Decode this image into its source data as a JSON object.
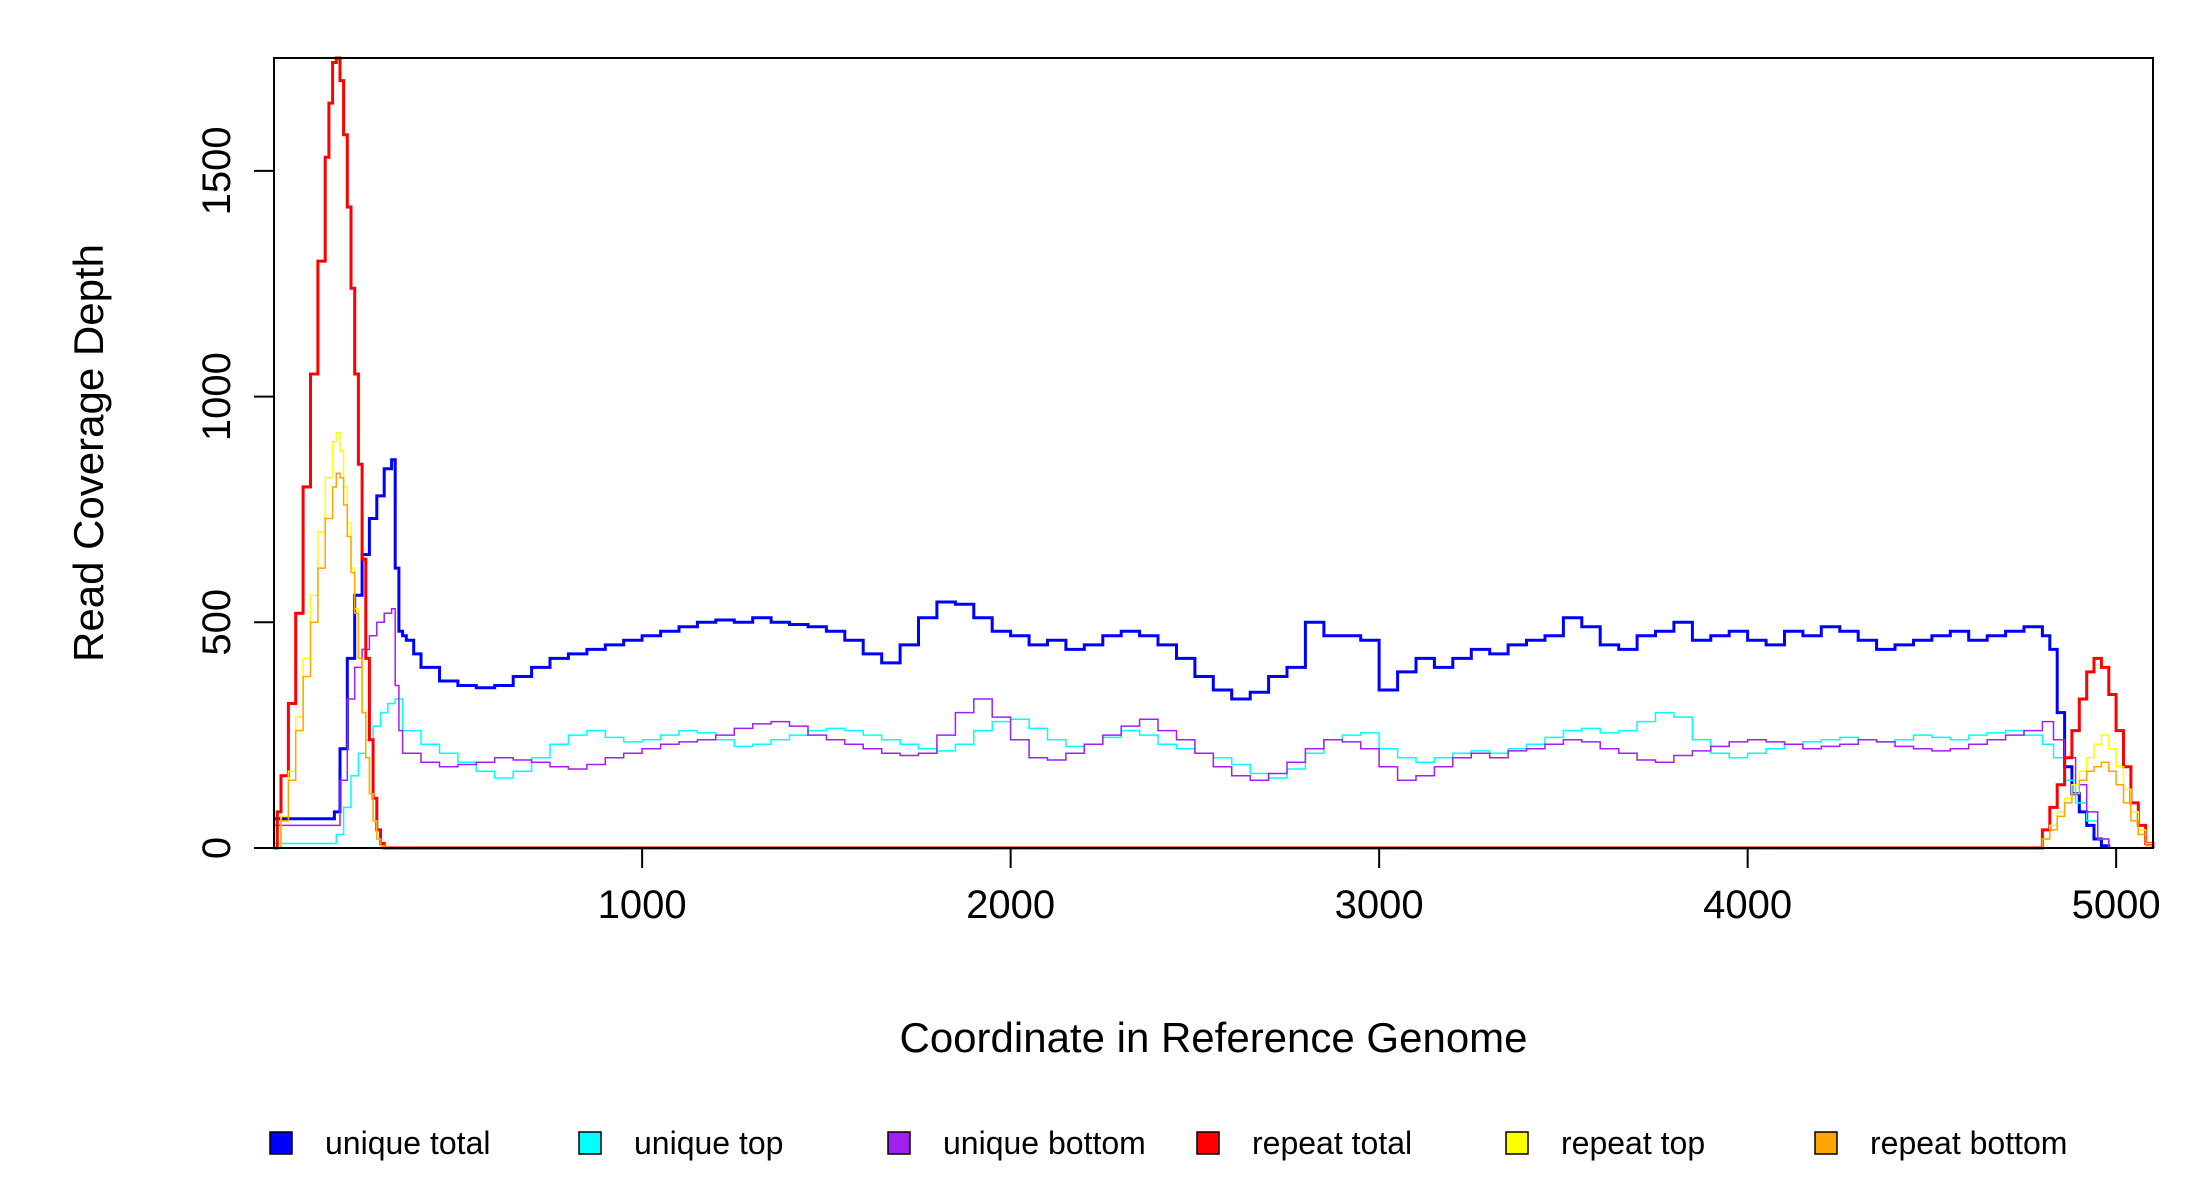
{
  "chart_data": {
    "type": "line",
    "title": "",
    "xlabel": "Coordinate in Reference Genome",
    "ylabel": "Read Coverage Depth",
    "xlim": [
      1,
      5100
    ],
    "ylim": [
      0,
      1750
    ],
    "xticks": [
      1000,
      2000,
      3000,
      4000,
      5000
    ],
    "xtick_labels": [
      "1000",
      "2000",
      "3000",
      "4000",
      "5000"
    ],
    "yticks": [
      0,
      500,
      1000,
      1500
    ],
    "ytick_labels": [
      "0",
      "500",
      "1000",
      "1500"
    ],
    "grid": false,
    "legend_position": "bottom",
    "series": [
      {
        "name": "unique total",
        "color": "#0000FF",
        "stroke": 3,
        "x": [
          1,
          160,
          165,
          180,
          200,
          220,
          240,
          260,
          280,
          300,
          320,
          330,
          340,
          350,
          360,
          380,
          400,
          450,
          500,
          550,
          600,
          650,
          700,
          750,
          800,
          850,
          900,
          950,
          1000,
          1050,
          1100,
          1150,
          1200,
          1250,
          1300,
          1350,
          1400,
          1450,
          1500,
          1550,
          1600,
          1650,
          1700,
          1750,
          1800,
          1850,
          1900,
          1950,
          2000,
          2050,
          2100,
          2150,
          2200,
          2250,
          2300,
          2350,
          2400,
          2450,
          2500,
          2550,
          2600,
          2650,
          2700,
          2750,
          2800,
          2850,
          2900,
          2950,
          3000,
          3050,
          3100,
          3150,
          3200,
          3250,
          3300,
          3350,
          3400,
          3450,
          3500,
          3550,
          3600,
          3650,
          3700,
          3750,
          3800,
          3850,
          3900,
          3950,
          4000,
          4050,
          4100,
          4150,
          4200,
          4250,
          4300,
          4350,
          4400,
          4450,
          4500,
          4550,
          4600,
          4650,
          4700,
          4750,
          4800,
          4820,
          4840,
          4860,
          4880,
          4900,
          4920,
          4940,
          4960,
          4980
        ],
        "y": [
          65,
          65,
          80,
          220,
          420,
          560,
          650,
          730,
          780,
          840,
          860,
          620,
          480,
          470,
          460,
          430,
          400,
          370,
          360,
          355,
          360,
          380,
          400,
          420,
          430,
          440,
          450,
          460,
          470,
          480,
          490,
          500,
          505,
          500,
          510,
          500,
          495,
          490,
          480,
          460,
          430,
          410,
          450,
          510,
          545,
          540,
          510,
          480,
          470,
          450,
          460,
          440,
          450,
          470,
          480,
          470,
          450,
          420,
          380,
          350,
          330,
          345,
          380,
          400,
          500,
          470,
          470,
          460,
          350,
          390,
          420,
          400,
          420,
          440,
          430,
          450,
          460,
          470,
          510,
          490,
          450,
          440,
          470,
          480,
          500,
          460,
          470,
          480,
          460,
          450,
          480,
          470,
          490,
          480,
          460,
          440,
          450,
          460,
          470,
          480,
          460,
          470,
          480,
          490,
          470,
          440,
          300,
          180,
          120,
          80,
          50,
          20,
          5,
          0
        ]
      },
      {
        "name": "unique top",
        "color": "#00FFFF",
        "stroke": 1.5,
        "x": [
          1,
          160,
          170,
          190,
          210,
          230,
          250,
          270,
          290,
          310,
          330,
          350,
          400,
          450,
          500,
          550,
          600,
          650,
          700,
          750,
          800,
          850,
          900,
          950,
          1000,
          1050,
          1100,
          1150,
          1200,
          1250,
          1300,
          1350,
          1400,
          1450,
          1500,
          1550,
          1600,
          1650,
          1700,
          1750,
          1800,
          1850,
          1900,
          1950,
          2000,
          2050,
          2100,
          2150,
          2200,
          2250,
          2300,
          2350,
          2400,
          2450,
          2500,
          2550,
          2600,
          2650,
          2700,
          2750,
          2800,
          2850,
          2900,
          2950,
          3000,
          3050,
          3100,
          3150,
          3200,
          3250,
          3300,
          3350,
          3400,
          3450,
          3500,
          3550,
          3600,
          3650,
          3700,
          3750,
          3800,
          3850,
          3900,
          3950,
          4000,
          4050,
          4100,
          4150,
          4200,
          4250,
          4300,
          4350,
          4400,
          4450,
          4500,
          4550,
          4600,
          4650,
          4700,
          4750,
          4800,
          4830,
          4860,
          4890,
          4920,
          4950,
          4980
        ],
        "y": [
          10,
          10,
          30,
          90,
          160,
          210,
          240,
          270,
          300,
          320,
          330,
          260,
          230,
          210,
          190,
          170,
          155,
          170,
          200,
          230,
          250,
          260,
          245,
          235,
          240,
          250,
          260,
          255,
          240,
          225,
          230,
          240,
          250,
          260,
          265,
          260,
          250,
          240,
          230,
          220,
          215,
          230,
          260,
          280,
          285,
          265,
          240,
          225,
          230,
          245,
          260,
          250,
          230,
          220,
          210,
          200,
          185,
          165,
          155,
          175,
          210,
          240,
          250,
          255,
          220,
          200,
          190,
          200,
          210,
          215,
          210,
          220,
          230,
          245,
          260,
          265,
          255,
          260,
          280,
          300,
          290,
          240,
          210,
          200,
          210,
          220,
          230,
          235,
          240,
          245,
          240,
          235,
          240,
          250,
          245,
          240,
          250,
          255,
          260,
          250,
          230,
          200,
          150,
          100,
          60,
          20,
          0
        ]
      },
      {
        "name": "unique bottom",
        "color": "#A020F0",
        "stroke": 1.5,
        "x": [
          1,
          160,
          180,
          200,
          220,
          240,
          260,
          280,
          300,
          320,
          330,
          340,
          350,
          400,
          450,
          500,
          550,
          600,
          650,
          700,
          750,
          800,
          850,
          900,
          950,
          1000,
          1050,
          1100,
          1150,
          1200,
          1250,
          1300,
          1350,
          1400,
          1450,
          1500,
          1550,
          1600,
          1650,
          1700,
          1750,
          1800,
          1850,
          1900,
          1950,
          2000,
          2050,
          2100,
          2150,
          2200,
          2250,
          2300,
          2350,
          2400,
          2450,
          2500,
          2550,
          2600,
          2650,
          2700,
          2750,
          2800,
          2850,
          2900,
          2950,
          3000,
          3050,
          3100,
          3150,
          3200,
          3250,
          3300,
          3350,
          3400,
          3450,
          3500,
          3550,
          3600,
          3650,
          3700,
          3750,
          3800,
          3850,
          3900,
          3950,
          4000,
          4050,
          4100,
          4150,
          4200,
          4250,
          4300,
          4350,
          4400,
          4450,
          4500,
          4550,
          4600,
          4650,
          4700,
          4750,
          4800,
          4830,
          4860,
          4890,
          4920,
          4950,
          4980
        ],
        "y": [
          50,
          50,
          150,
          330,
          400,
          440,
          470,
          500,
          520,
          530,
          360,
          260,
          210,
          190,
          180,
          185,
          190,
          200,
          195,
          190,
          180,
          175,
          185,
          200,
          210,
          220,
          230,
          235,
          240,
          250,
          265,
          275,
          280,
          270,
          250,
          240,
          230,
          220,
          210,
          205,
          210,
          250,
          300,
          330,
          290,
          240,
          200,
          195,
          210,
          230,
          250,
          270,
          285,
          260,
          240,
          210,
          180,
          160,
          150,
          165,
          190,
          220,
          240,
          235,
          220,
          180,
          150,
          160,
          180,
          200,
          210,
          200,
          215,
          220,
          230,
          240,
          235,
          220,
          210,
          195,
          190,
          205,
          215,
          225,
          235,
          240,
          235,
          230,
          220,
          225,
          230,
          240,
          235,
          225,
          220,
          215,
          220,
          230,
          240,
          250,
          260,
          280,
          240,
          200,
          140,
          80,
          20,
          0
        ]
      },
      {
        "name": "repeat total",
        "color": "#FF0000",
        "stroke": 3,
        "x": [
          1,
          10,
          20,
          40,
          60,
          80,
          100,
          120,
          140,
          150,
          160,
          170,
          180,
          190,
          200,
          210,
          220,
          230,
          240,
          250,
          260,
          270,
          280,
          290,
          300,
          310,
          320,
          4780,
          4800,
          4820,
          4840,
          4860,
          4880,
          4900,
          4920,
          4940,
          4960,
          4980,
          5000,
          5020,
          5040,
          5060,
          5080,
          5100
        ],
        "y": [
          0,
          80,
          160,
          320,
          520,
          800,
          1050,
          1300,
          1530,
          1650,
          1740,
          1750,
          1700,
          1580,
          1420,
          1240,
          1050,
          850,
          640,
          420,
          240,
          110,
          40,
          10,
          0,
          0,
          0,
          0,
          40,
          90,
          140,
          200,
          260,
          330,
          390,
          420,
          400,
          340,
          260,
          180,
          100,
          50,
          10,
          0
        ]
      },
      {
        "name": "repeat top",
        "color": "#FFFF00",
        "stroke": 1.5,
        "x": [
          1,
          20,
          40,
          60,
          80,
          100,
          120,
          140,
          160,
          170,
          180,
          190,
          200,
          210,
          220,
          230,
          240,
          250,
          260,
          270,
          280,
          290,
          300,
          310,
          4780,
          4800,
          4820,
          4840,
          4860,
          4880,
          4900,
          4920,
          4940,
          4960,
          4980,
          5000,
          5020,
          5040,
          5060,
          5080,
          5100
        ],
        "y": [
          0,
          70,
          170,
          290,
          420,
          560,
          700,
          820,
          900,
          920,
          880,
          800,
          720,
          620,
          530,
          420,
          300,
          200,
          120,
          60,
          20,
          5,
          0,
          0,
          0,
          20,
          50,
          80,
          110,
          140,
          170,
          200,
          230,
          250,
          220,
          180,
          130,
          80,
          40,
          10,
          0
        ]
      },
      {
        "name": "repeat bottom",
        "color": "#FFA500",
        "stroke": 1.5,
        "x": [
          1,
          20,
          40,
          60,
          80,
          100,
          120,
          140,
          160,
          170,
          180,
          190,
          200,
          210,
          220,
          230,
          240,
          250,
          260,
          270,
          280,
          290,
          300,
          310,
          4780,
          4800,
          4820,
          4840,
          4860,
          4880,
          4900,
          4920,
          4940,
          4960,
          4980,
          5000,
          5020,
          5040,
          5060,
          5080,
          5100
        ],
        "y": [
          0,
          60,
          150,
          260,
          380,
          500,
          620,
          730,
          800,
          830,
          820,
          760,
          690,
          610,
          520,
          420,
          300,
          200,
          120,
          60,
          20,
          5,
          0,
          0,
          0,
          20,
          40,
          70,
          100,
          120,
          150,
          170,
          180,
          190,
          170,
          140,
          100,
          60,
          30,
          5,
          0
        ]
      }
    ]
  }
}
